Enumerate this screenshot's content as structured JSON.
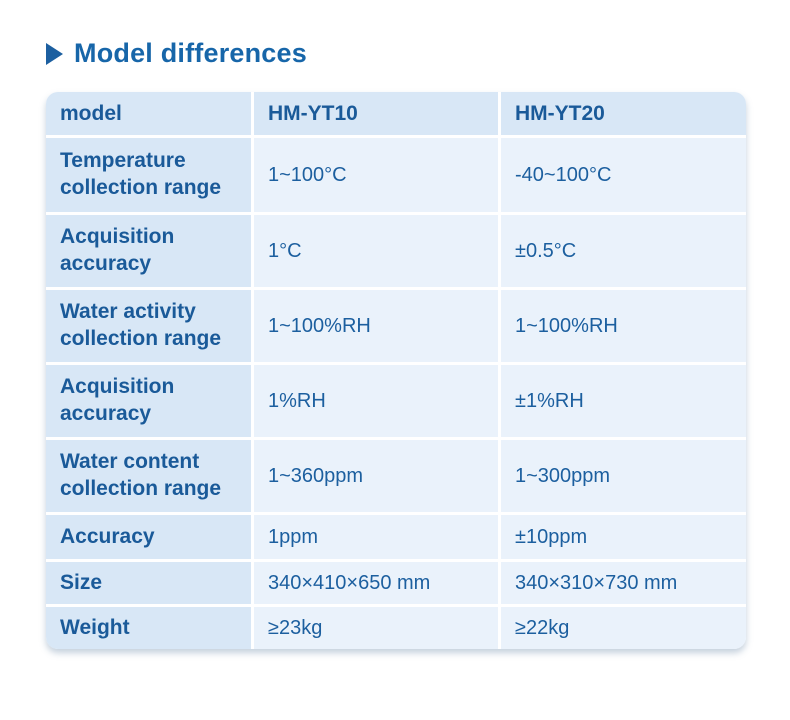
{
  "page": {
    "title": "Model differences"
  },
  "colors": {
    "accent_blue": "#1766a9",
    "text_blue": "#1a5a99",
    "header_cell_bg": "#d8e7f6",
    "value_cell_bg": "#eaf2fb"
  },
  "table": {
    "columns": [
      "model",
      "HM-YT10",
      "HM-YT20"
    ],
    "rows": [
      {
        "label": "Temperature collection range",
        "yt10": "1~100°C",
        "yt20": "-40~100°C"
      },
      {
        "label": "Acquisition accuracy",
        "yt10": "1°C",
        "yt20": "±0.5°C"
      },
      {
        "label": "Water activity collection range",
        "yt10": "1~100%RH",
        "yt20": "1~100%RH"
      },
      {
        "label": "Acquisition accuracy",
        "yt10": "1%RH",
        "yt20": "±1%RH"
      },
      {
        "label": "Water content collection range",
        "yt10": "1~360ppm",
        "yt20": "1~300ppm"
      },
      {
        "label": "Accuracy",
        "yt10": "1ppm",
        "yt20": "±10ppm"
      },
      {
        "label": "Size",
        "yt10": "340×410×650 mm",
        "yt20": "340×310×730 mm"
      },
      {
        "label": "Weight",
        "yt10": "≥23kg",
        "yt20": "≥22kg"
      }
    ]
  }
}
